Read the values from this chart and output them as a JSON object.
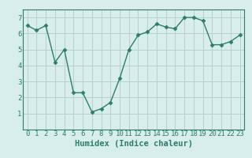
{
  "xlabel": "Humidex (Indice chaleur)",
  "x": [
    0,
    1,
    2,
    3,
    4,
    5,
    6,
    7,
    8,
    9,
    10,
    11,
    12,
    13,
    14,
    15,
    16,
    17,
    18,
    19,
    20,
    21,
    22,
    23
  ],
  "y": [
    6.5,
    6.2,
    6.5,
    4.2,
    5.0,
    2.3,
    2.3,
    1.1,
    1.3,
    1.7,
    3.2,
    5.0,
    5.9,
    6.1,
    6.6,
    6.4,
    6.3,
    7.0,
    7.0,
    6.8,
    5.3,
    5.3,
    5.5,
    5.9
  ],
  "line_color": "#2d7d6e",
  "marker": "D",
  "marker_size": 2.5,
  "bg_color": "#d8eeed",
  "grid_color": "#b8d0ce",
  "xlim": [
    -0.5,
    23.5
  ],
  "ylim": [
    0,
    7.5
  ],
  "yticks": [
    1,
    2,
    3,
    4,
    5,
    6,
    7
  ],
  "xticks": [
    0,
    1,
    2,
    3,
    4,
    5,
    6,
    7,
    8,
    9,
    10,
    11,
    12,
    13,
    14,
    15,
    16,
    17,
    18,
    19,
    20,
    21,
    22,
    23
  ],
  "tick_color": "#2d7d6e",
  "tick_fontsize": 6.5,
  "xlabel_fontsize": 7.5
}
